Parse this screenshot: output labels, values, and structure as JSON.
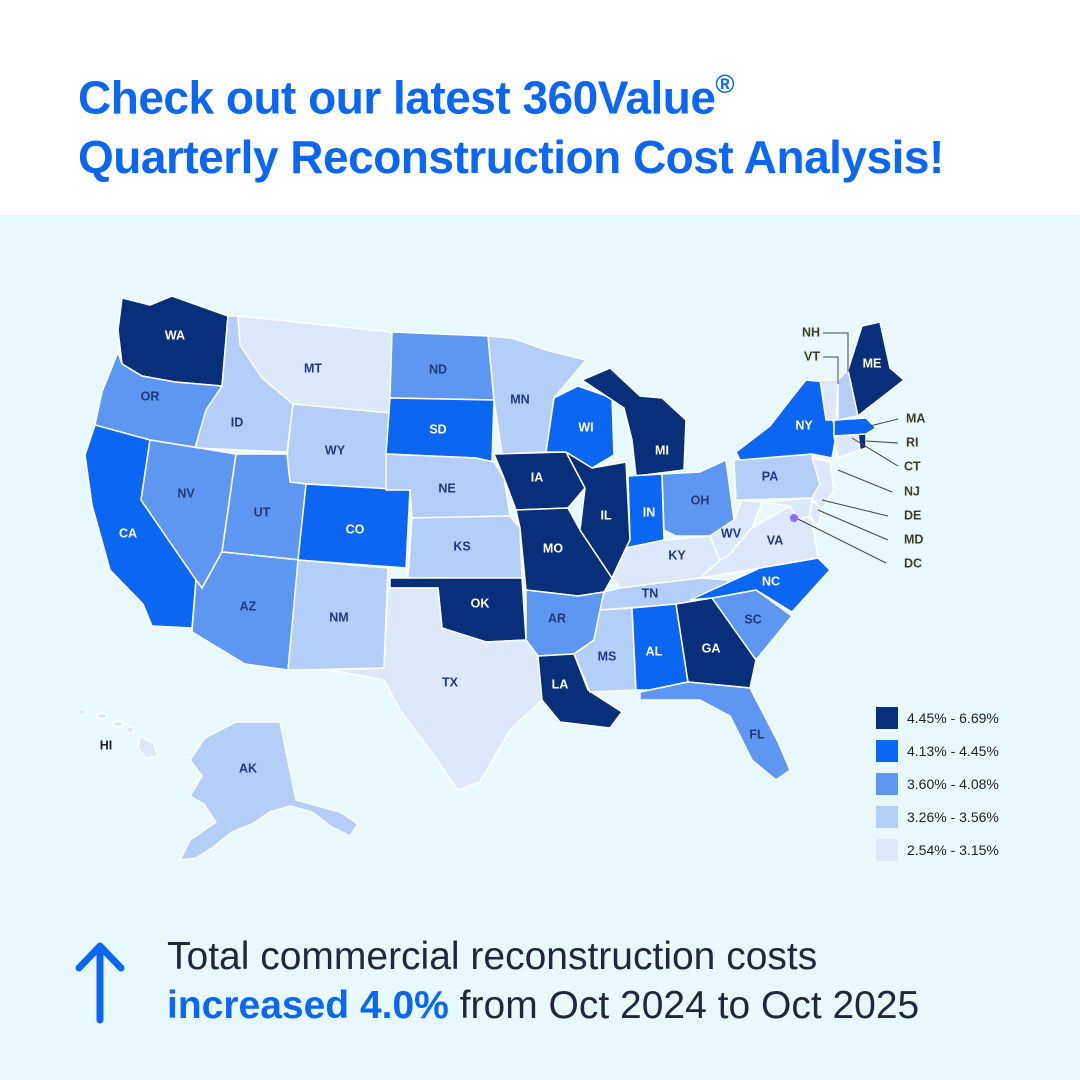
{
  "header": {
    "title_line1": "Check out our latest 360Value",
    "registered": "®",
    "title_line2": "Quarterly Reconstruction Cost Analysis!"
  },
  "colors": {
    "title": "#0b66f2",
    "tier1": "#0a2f7a",
    "tier2": "#0b66f2",
    "tier3": "#5d97f2",
    "tier4": "#b3cff8",
    "tier5": "#dde9fb",
    "panel": "#e8f9fd"
  },
  "legend": {
    "items": [
      {
        "tier": 1,
        "label": "4.45% - 6.69%"
      },
      {
        "tier": 2,
        "label": "4.13% - 4.45%"
      },
      {
        "tier": 3,
        "label": "3.60% - 4.08%"
      },
      {
        "tier": 4,
        "label": "3.26% - 3.56%"
      },
      {
        "tier": 5,
        "label": "2.54% - 3.15%"
      }
    ]
  },
  "states": {
    "WA": 1,
    "OR": 3,
    "CA": 2,
    "ID": 4,
    "NV": 3,
    "MT": 5,
    "WY": 4,
    "UT": 3,
    "AZ": 3,
    "CO": 2,
    "NM": 4,
    "ND": 3,
    "SD": 2,
    "NE": 4,
    "KS": 4,
    "OK": 1,
    "TX": 5,
    "MN": 4,
    "IA": 1,
    "MO": 1,
    "AR": 3,
    "LA": 1,
    "WI": 2,
    "IL": 1,
    "MI": 1,
    "IN": 2,
    "OH": 3,
    "KY": 5,
    "TN": 4,
    "MS": 4,
    "AL": 2,
    "GA": 1,
    "FL": 3,
    "SC": 3,
    "NC": 2,
    "VA": 5,
    "WV": 5,
    "PA": 4,
    "NY": 2,
    "ME": 1,
    "VT": 5,
    "NH": 4,
    "MA": 2,
    "RI": 1,
    "CT": 5,
    "NJ": 5,
    "DE": 5,
    "MD": 5,
    "DC": 3,
    "AK": 4,
    "HI": 5
  },
  "labels": {
    "WA": "WA",
    "OR": "OR",
    "CA": "CA",
    "ID": "ID",
    "NV": "NV",
    "MT": "MT",
    "WY": "WY",
    "UT": "UT",
    "AZ": "AZ",
    "CO": "CO",
    "NM": "NM",
    "ND": "ND",
    "SD": "SD",
    "NE": "NE",
    "KS": "KS",
    "OK": "OK",
    "TX": "TX",
    "MN": "MN",
    "IA": "IA",
    "MO": "MO",
    "AR": "AR",
    "LA": "LA",
    "WI": "WI",
    "IL": "IL",
    "MI": "MI",
    "IN": "IN",
    "OH": "OH",
    "KY": "KY",
    "TN": "TN",
    "MS": "MS",
    "AL": "AL",
    "GA": "GA",
    "FL": "FL",
    "SC": "SC",
    "NC": "NC",
    "VA": "VA",
    "WV": "WV",
    "PA": "PA",
    "NY": "NY",
    "ME": "ME",
    "AK": "AK",
    "HI": "HI",
    "NH": "NH",
    "VT": "VT",
    "MA": "MA",
    "RI": "RI",
    "CT": "CT",
    "NJ": "NJ",
    "DE": "DE",
    "MD": "MD",
    "DC": "DC"
  },
  "footer": {
    "line1": "Total commercial reconstruction costs",
    "highlight": "increased 4.0%",
    "line2_rest": " from Oct 2024 to Oct 2025"
  }
}
